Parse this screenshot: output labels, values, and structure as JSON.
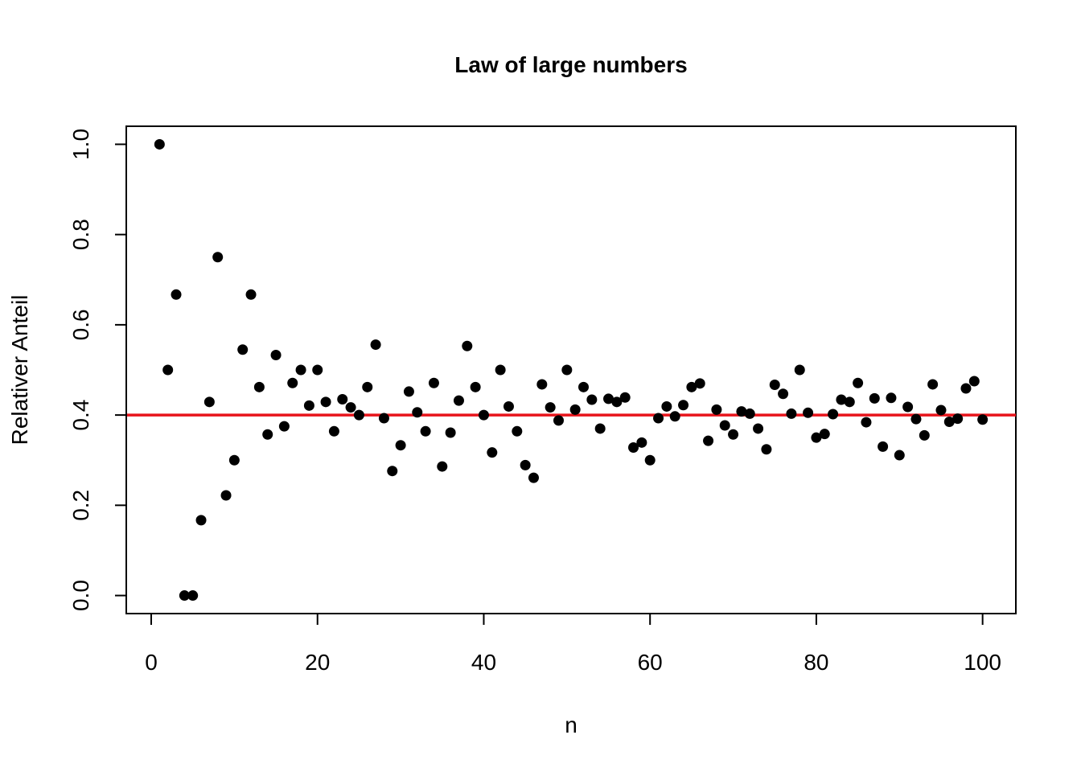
{
  "chart_data": {
    "type": "scatter",
    "title": "Law of large numbers",
    "xlabel": "n",
    "ylabel": "Relativer Anteil",
    "xlim": [
      -3,
      104
    ],
    "ylim": [
      -0.04,
      1.04
    ],
    "xticks": [
      0,
      20,
      40,
      60,
      80,
      100
    ],
    "xtick_labels": [
      "0",
      "20",
      "40",
      "60",
      "80",
      "100"
    ],
    "yticks": [
      0.0,
      0.2,
      0.4,
      0.6,
      0.8,
      1.0
    ],
    "ytick_labels": [
      "0.0",
      "0.2",
      "0.4",
      "0.6",
      "0.8",
      "1.0"
    ],
    "grid": false,
    "legend": "none",
    "point_color": "#000000",
    "reference_line": {
      "y": 0.4,
      "color": "#e8141b"
    },
    "x": [
      1,
      2,
      3,
      4,
      5,
      6,
      7,
      8,
      9,
      10,
      11,
      12,
      13,
      14,
      15,
      16,
      17,
      18,
      19,
      20,
      21,
      22,
      23,
      24,
      25,
      26,
      27,
      28,
      29,
      30,
      31,
      32,
      33,
      34,
      35,
      36,
      37,
      38,
      39,
      40,
      41,
      42,
      43,
      44,
      45,
      46,
      47,
      48,
      49,
      50,
      51,
      52,
      53,
      54,
      55,
      56,
      57,
      58,
      59,
      60,
      61,
      62,
      63,
      64,
      65,
      66,
      67,
      68,
      69,
      70,
      71,
      72,
      73,
      74,
      75,
      76,
      77,
      78,
      79,
      80,
      81,
      82,
      83,
      84,
      85,
      86,
      87,
      88,
      89,
      90,
      91,
      92,
      93,
      94,
      95,
      96,
      97,
      98,
      99,
      100
    ],
    "y": [
      1.0,
      0.5,
      0.667,
      0.0,
      0.0,
      0.167,
      0.429,
      0.75,
      0.222,
      0.3,
      0.545,
      0.667,
      0.462,
      0.357,
      0.533,
      0.375,
      0.471,
      0.5,
      0.421,
      0.5,
      0.429,
      0.364,
      0.435,
      0.417,
      0.4,
      0.462,
      0.556,
      0.393,
      0.276,
      0.333,
      0.452,
      0.406,
      0.364,
      0.471,
      0.286,
      0.361,
      0.432,
      0.553,
      0.462,
      0.4,
      0.317,
      0.5,
      0.419,
      0.364,
      0.289,
      0.261,
      0.468,
      0.417,
      0.388,
      0.5,
      0.412,
      0.462,
      0.434,
      0.37,
      0.436,
      0.429,
      0.439,
      0.328,
      0.339,
      0.3,
      0.393,
      0.419,
      0.397,
      0.422,
      0.462,
      0.47,
      0.343,
      0.412,
      0.377,
      0.357,
      0.408,
      0.403,
      0.37,
      0.324,
      0.467,
      0.447,
      0.403,
      0.5,
      0.405,
      0.35,
      0.358,
      0.402,
      0.434,
      0.429,
      0.471,
      0.384,
      0.437,
      0.33,
      0.438,
      0.311,
      0.418,
      0.391,
      0.355,
      0.468,
      0.411,
      0.385,
      0.392,
      0.459,
      0.475,
      0.39
    ]
  }
}
